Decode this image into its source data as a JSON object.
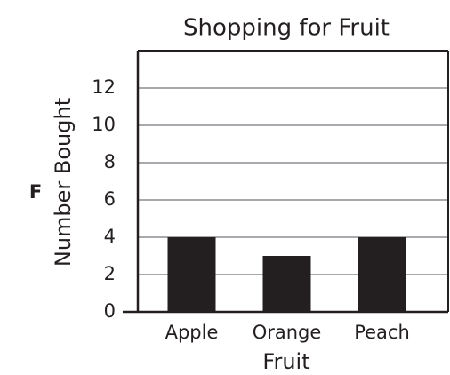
{
  "panel_label": "F",
  "chart_data": {
    "type": "bar",
    "title": "Shopping for Fruit",
    "x_label": "Fruit",
    "y_label": "Number Bought",
    "categories": [
      "Apple",
      "Orange",
      "Peach"
    ],
    "values": [
      4,
      3,
      4
    ],
    "color": "#231f20",
    "ylim": [
      0,
      14
    ],
    "yticks": [
      0,
      2,
      4,
      6,
      8,
      10,
      12
    ],
    "grid": true
  }
}
